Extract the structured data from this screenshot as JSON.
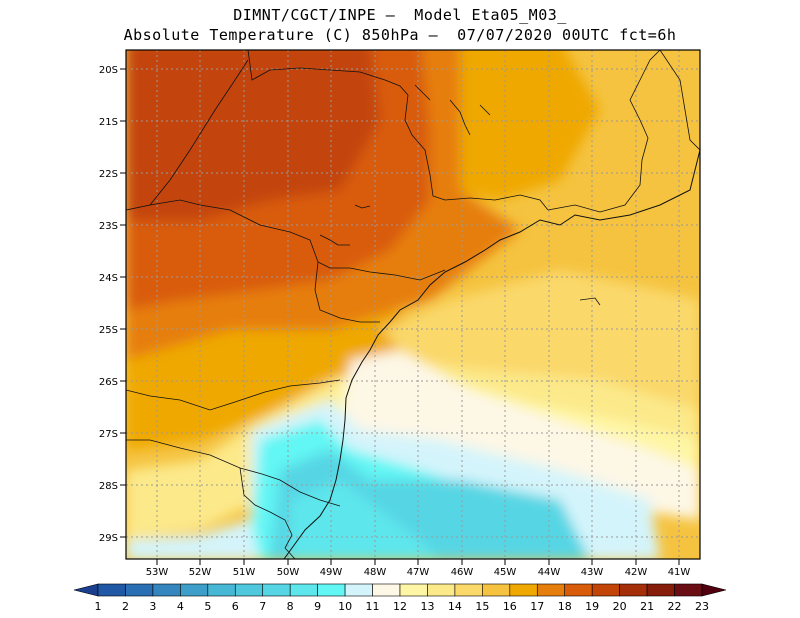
{
  "title_line1": "DIMNT/CGCT/INPE –  Model Eta05_M03_",
  "title_line2": "Absolute Temperature (C) 850hPa –  07/07/2020 00UTC fct=6h",
  "lat_labels": [
    "20S",
    "21S",
    "22S",
    "23S",
    "24S",
    "25S",
    "26S",
    "27S",
    "28S",
    "29S"
  ],
  "lon_labels": [
    "53W",
    "52W",
    "51W",
    "50W",
    "49W",
    "48W",
    "47W",
    "46W",
    "45W",
    "44W",
    "43W",
    "42W",
    "41W"
  ],
  "extent": {
    "lon_min": -53.9,
    "lon_max": -40.5,
    "lat_min": -29.4,
    "lat_max": -19.8
  },
  "colorbar": {
    "labels": [
      "1",
      "2",
      "3",
      "4",
      "5",
      "6",
      "7",
      "8",
      "9",
      "10",
      "11",
      "12",
      "13",
      "14",
      "15",
      "16",
      "17",
      "18",
      "19",
      "20",
      "21",
      "22",
      "23"
    ],
    "colors": [
      "#1a3f8f",
      "#2158a6",
      "#2a6fb3",
      "#3586be",
      "#3d9fc9",
      "#46b7d4",
      "#4fc8dd",
      "#56d6e4",
      "#5de6ec",
      "#62f6f4",
      "#d4f4fb",
      "#fdf7e6",
      "#fef6a5",
      "#fce98a",
      "#fad86a",
      "#f5c33f",
      "#efa800",
      "#e67e0e",
      "#d95c0a",
      "#c34407",
      "#a42f08",
      "#861d0a",
      "#6b0e14",
      "#520010"
    ]
  },
  "grid": true
}
